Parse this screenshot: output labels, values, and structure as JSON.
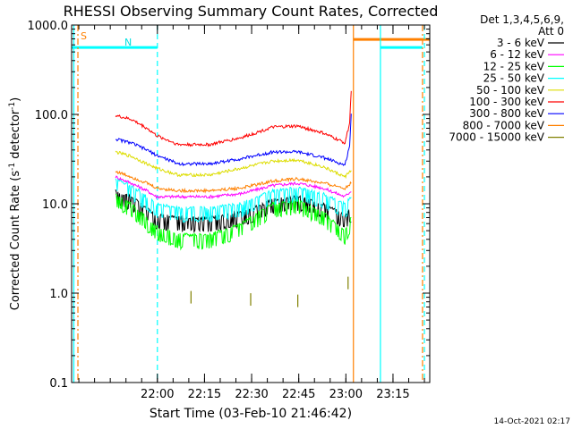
{
  "chart_data": {
    "type": "line",
    "title": "RHESSI Observing Summary Count Rates, Corrected",
    "xlabel": "Start Time (03-Feb-10 21:46:42)",
    "ylabel_main": "Corrected Count Rate (s",
    "ylabel_sup1": "-1",
    "ylabel_mid": " detector",
    "ylabel_sup2": "-1",
    "ylabel_end": ")",
    "yscale": "log",
    "ylim": [
      0.1,
      1000
    ],
    "xlim_minutes": [
      -14,
      100
    ],
    "x_unit": "minutes after 21:46:42",
    "y_ticks": [
      {
        "v": 1000,
        "label": "1000.0"
      },
      {
        "v": 100,
        "label": "100.0"
      },
      {
        "v": 10,
        "label": "10.0"
      },
      {
        "v": 1,
        "label": "1.0"
      },
      {
        "v": 0.1,
        "label": "0.1"
      }
    ],
    "x_ticks": [
      {
        "m": 13.3,
        "label": "22:00"
      },
      {
        "m": 28.3,
        "label": "22:15"
      },
      {
        "m": 43.3,
        "label": "22:30"
      },
      {
        "m": 58.3,
        "label": "22:45"
      },
      {
        "m": 73.3,
        "label": "23:00"
      },
      {
        "m": 88.3,
        "label": "23:15"
      }
    ],
    "legend_header": [
      "Det 1,3,4,5,6,9,",
      "Att 0"
    ],
    "legend_placement": "outside-right",
    "series": [
      {
        "name": "3 - 6 keV",
        "color": "#000000",
        "points": [
          [
            0,
            14
          ],
          [
            5,
            12
          ],
          [
            10,
            9
          ],
          [
            13,
            7.5
          ],
          [
            20,
            7
          ],
          [
            30,
            7
          ],
          [
            40,
            8
          ],
          [
            50,
            11
          ],
          [
            58,
            12
          ],
          [
            66,
            10
          ],
          [
            73,
            7.5
          ],
          [
            75,
            9
          ]
        ]
      },
      {
        "name": "6 - 12 keV",
        "color": "#ff00ff",
        "points": [
          [
            0,
            20
          ],
          [
            5,
            17
          ],
          [
            10,
            14
          ],
          [
            13,
            12
          ],
          [
            20,
            12
          ],
          [
            30,
            12
          ],
          [
            40,
            13
          ],
          [
            50,
            16
          ],
          [
            58,
            17
          ],
          [
            66,
            15
          ],
          [
            73,
            12
          ],
          [
            75,
            14
          ]
        ]
      },
      {
        "name": "12 - 25 keV",
        "color": "#00ff00",
        "points": [
          [
            0,
            13
          ],
          [
            5,
            10
          ],
          [
            10,
            7
          ],
          [
            13,
            5.5
          ],
          [
            20,
            4.5
          ],
          [
            30,
            4.5
          ],
          [
            40,
            6
          ],
          [
            50,
            10
          ],
          [
            58,
            11
          ],
          [
            66,
            8
          ],
          [
            73,
            5
          ],
          [
            75,
            7
          ]
        ]
      },
      {
        "name": "25 - 50 keV",
        "color": "#00ffff",
        "points": [
          [
            0,
            19
          ],
          [
            5,
            16
          ],
          [
            10,
            12
          ],
          [
            13,
            10
          ],
          [
            20,
            9
          ],
          [
            30,
            9
          ],
          [
            40,
            10
          ],
          [
            50,
            14
          ],
          [
            58,
            15
          ],
          [
            66,
            13
          ],
          [
            73,
            10
          ],
          [
            75,
            12
          ]
        ]
      },
      {
        "name": "50 - 100 keV",
        "color": "#dddd00",
        "points": [
          [
            0,
            38
          ],
          [
            5,
            34
          ],
          [
            10,
            28
          ],
          [
            13,
            25
          ],
          [
            20,
            21
          ],
          [
            30,
            21
          ],
          [
            40,
            25
          ],
          [
            50,
            30
          ],
          [
            58,
            31
          ],
          [
            66,
            26
          ],
          [
            73,
            20
          ],
          [
            75,
            24
          ]
        ]
      },
      {
        "name": "100 - 300 keV",
        "color": "#ff0000",
        "points": [
          [
            0,
            97
          ],
          [
            5,
            88
          ],
          [
            10,
            70
          ],
          [
            13,
            58
          ],
          [
            20,
            46
          ],
          [
            30,
            46
          ],
          [
            40,
            55
          ],
          [
            50,
            72
          ],
          [
            58,
            74
          ],
          [
            66,
            62
          ],
          [
            73,
            48
          ],
          [
            74.5,
            80
          ],
          [
            75,
            190
          ]
        ]
      },
      {
        "name": "300 - 800 keV",
        "color": "#0000ff",
        "points": [
          [
            0,
            53
          ],
          [
            5,
            48
          ],
          [
            10,
            40
          ],
          [
            13,
            35
          ],
          [
            20,
            28
          ],
          [
            30,
            28
          ],
          [
            40,
            32
          ],
          [
            50,
            38
          ],
          [
            58,
            38
          ],
          [
            66,
            33
          ],
          [
            73,
            27
          ],
          [
            74.5,
            45
          ],
          [
            75,
            100
          ]
        ]
      },
      {
        "name": "800 - 7000 keV",
        "color": "#ff8000",
        "points": [
          [
            0,
            23
          ],
          [
            5,
            20
          ],
          [
            10,
            17
          ],
          [
            13,
            15
          ],
          [
            20,
            14
          ],
          [
            30,
            14
          ],
          [
            40,
            15
          ],
          [
            50,
            18
          ],
          [
            58,
            19
          ],
          [
            66,
            17
          ],
          [
            73,
            15
          ],
          [
            75,
            17
          ]
        ]
      },
      {
        "name": "7000 - 15000 keV",
        "color": "#808000",
        "points": [
          [
            24,
            0.9
          ],
          [
            43,
            0.85
          ],
          [
            58,
            0.82
          ],
          [
            74,
            1.3
          ]
        ]
      }
    ],
    "flag_labels": {
      "saa": "S",
      "night": "N"
    },
    "flag_bars": [
      {
        "color": "#00ffff",
        "level": 560,
        "from_m": -14,
        "to_m": 13.3
      },
      {
        "color": "#ff8000",
        "level": 690,
        "from_m": 75.7,
        "to_m": 100
      },
      {
        "color": "#00ffff",
        "level": 560,
        "from_m": 84.3,
        "to_m": 97.7
      }
    ],
    "vlines": [
      {
        "m": -13.3,
        "color": "#00ffff",
        "style": "solid"
      },
      {
        "m": -12.0,
        "color": "#ff8000",
        "style": "dashdot"
      },
      {
        "m": 13.3,
        "color": "#00ffff",
        "style": "dashed"
      },
      {
        "m": 75.7,
        "color": "#ff8000",
        "style": "solid"
      },
      {
        "m": 84.3,
        "color": "#00ffff",
        "style": "solid"
      },
      {
        "m": 97.7,
        "color": "#ff8000",
        "style": "dashdot"
      },
      {
        "m": 98.3,
        "color": "#00ffff",
        "style": "dashed"
      }
    ]
  },
  "footer": {
    "timestamp": "14-Oct-2021 02:17"
  }
}
